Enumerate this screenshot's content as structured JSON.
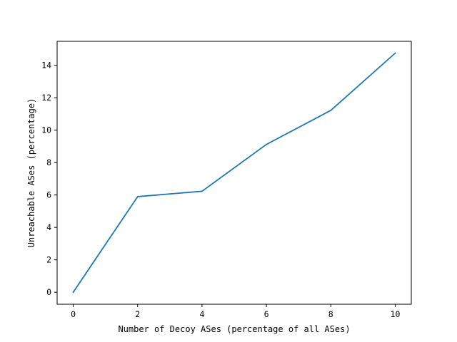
{
  "chart_data": {
    "type": "line",
    "title": "",
    "xlabel": "Number of Decoy ASes (percentage of all ASes)",
    "ylabel": "Unreachable ASes (percentage)",
    "xlim": [
      -0.5,
      10.5
    ],
    "ylim": [
      -0.74,
      15.48
    ],
    "xticks": [
      0,
      2,
      4,
      6,
      8,
      10
    ],
    "yticks": [
      0,
      2,
      4,
      6,
      8,
      10,
      12,
      14
    ],
    "grid": false,
    "legend": "none",
    "series": [
      {
        "x": [
          0,
          2,
          4,
          6,
          8,
          10
        ],
        "y": [
          0.0,
          5.9,
          6.23,
          9.12,
          11.22,
          14.75
        ],
        "color": "#1f77b4"
      }
    ]
  }
}
